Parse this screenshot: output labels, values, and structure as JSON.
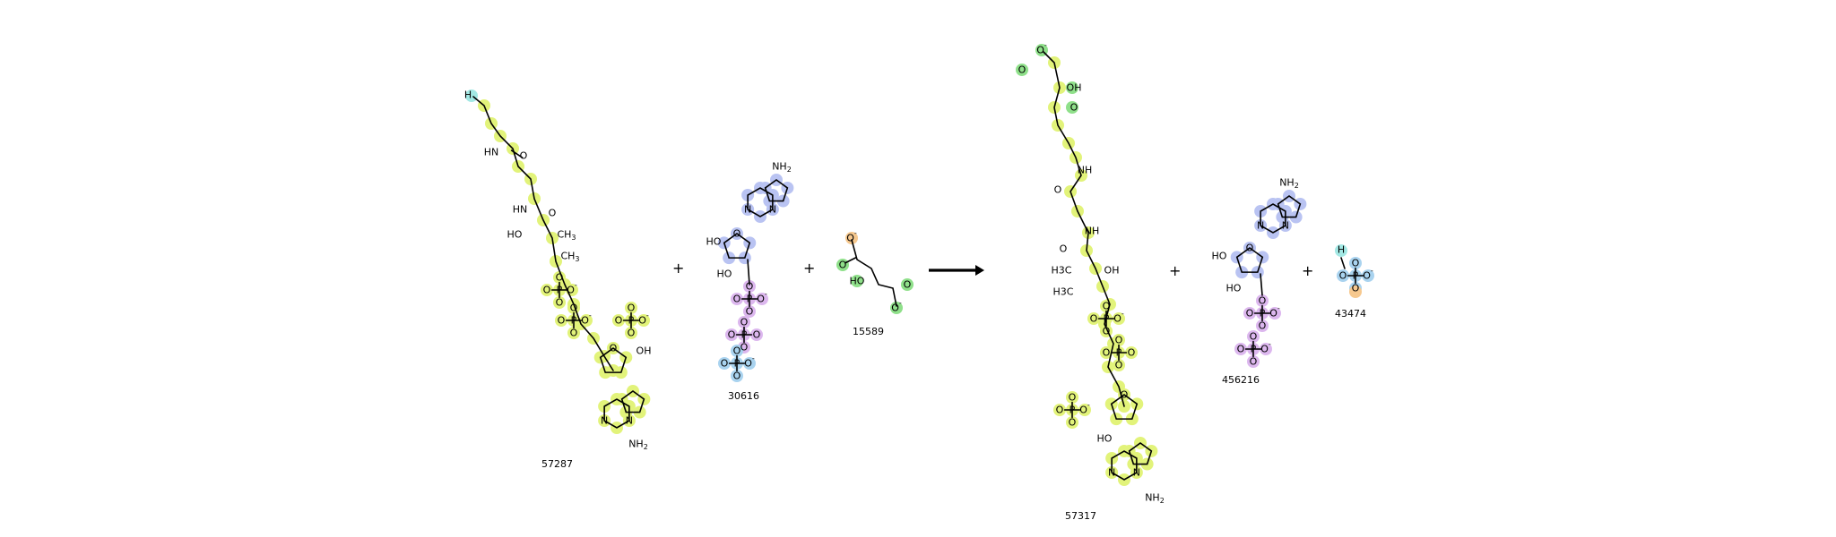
{
  "operators": {
    "plus": "+"
  },
  "compounds": [
    {
      "id": "57287"
    },
    {
      "id": "30616"
    },
    {
      "id": "15589"
    },
    {
      "id": "57317"
    },
    {
      "id": "456216"
    },
    {
      "id": "43474"
    }
  ],
  "atom_text": {
    "NH": "NH",
    "HN": "HN",
    "HO": "HO",
    "OH": "OH",
    "O": "O",
    "N": "N",
    "P": "P",
    "S": "S",
    "H": "H",
    "NH2": "NH2",
    "CH3": "CH3",
    "H3C": "H3C",
    "minus": "-"
  },
  "highlight_colors": {
    "yellow": "#e2f37a",
    "green": "#8fe08a",
    "blue": "#b9c3f2",
    "purple": "#dcb7ee",
    "cyan": "#a3e8e4",
    "orange": "#f6c88e",
    "lightblue": "#a9d3ef"
  }
}
